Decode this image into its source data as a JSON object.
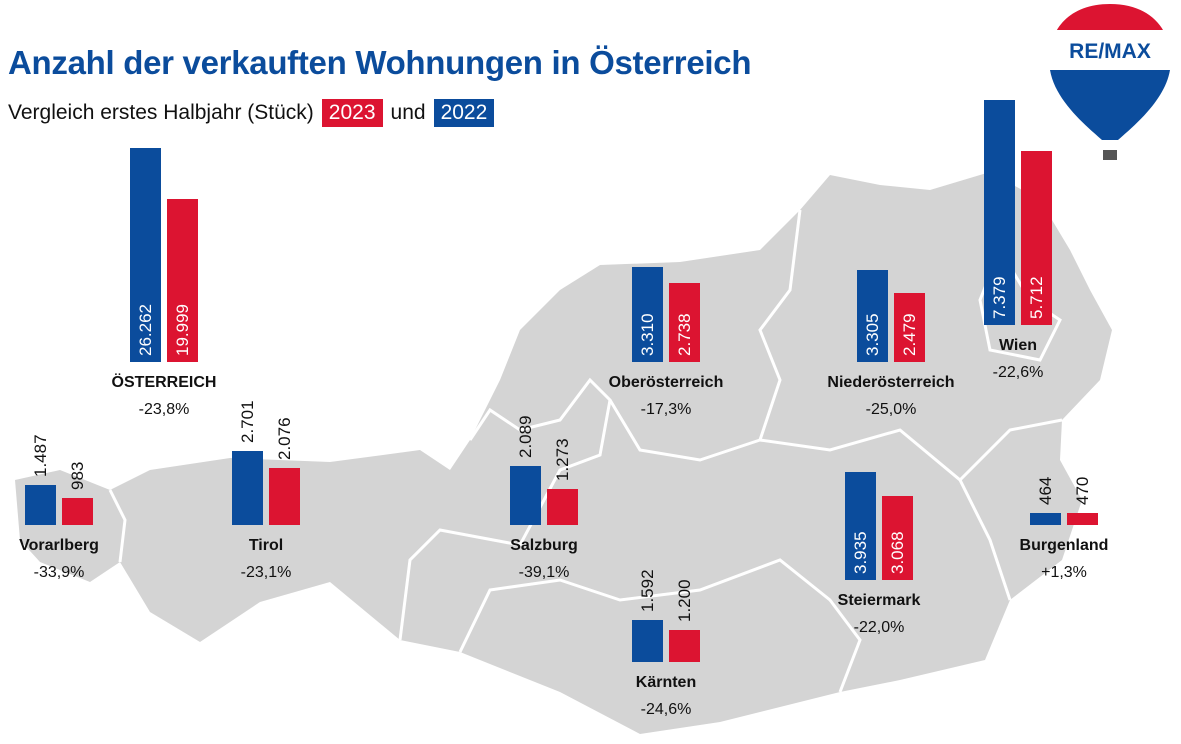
{
  "header": {
    "title": "Anzahl der verkauften Wohnungen in Österreich",
    "subtitle": "Vergleich erstes Halbjahr (Stück)",
    "year_2023": "2023",
    "connector": "und",
    "year_2022": "2022"
  },
  "logo": {
    "text": "RE/MAX"
  },
  "colors": {
    "y2022": "#0b4c9c",
    "y2023": "#dc1431",
    "map": "#d4d4d4"
  },
  "chart_data": {
    "type": "bar",
    "title": "Anzahl der verkauften Wohnungen in Österreich",
    "subtitle": "Vergleich erstes Halbjahr (Stück)",
    "legend": [
      "2023",
      "2022"
    ],
    "series_names": [
      "2022",
      "2023"
    ],
    "regions": [
      {
        "name": "ÖSTERREICH",
        "v2022": 26262,
        "v2023": 19999,
        "l2022": "26.262",
        "l2023": "19.999",
        "change": "-23,8%"
      },
      {
        "name": "Vorarlberg",
        "v2022": 1487,
        "v2023": 983,
        "l2022": "1.487",
        "l2023": "983",
        "change": "-33,9%"
      },
      {
        "name": "Tirol",
        "v2022": 2701,
        "v2023": 2076,
        "l2022": "2.701",
        "l2023": "2.076",
        "change": "-23,1%"
      },
      {
        "name": "Salzburg",
        "v2022": 2089,
        "v2023": 1273,
        "l2022": "2.089",
        "l2023": "1.273",
        "change": "-39,1%"
      },
      {
        "name": "Kärnten",
        "v2022": 1592,
        "v2023": 1200,
        "l2022": "1.592",
        "l2023": "1.200",
        "change": "-24,6%"
      },
      {
        "name": "Oberösterreich",
        "v2022": 3310,
        "v2023": 2738,
        "l2022": "3.310",
        "l2023": "2.738",
        "change": "-17,3%"
      },
      {
        "name": "Niederösterreich",
        "v2022": 3305,
        "v2023": 2479,
        "l2022": "3.305",
        "l2023": "2.479",
        "change": "-25,0%"
      },
      {
        "name": "Wien",
        "v2022": 7379,
        "v2023": 5712,
        "l2022": "7.379",
        "l2023": "5.712",
        "change": "-22,6%"
      },
      {
        "name": "Steiermark",
        "v2022": 3935,
        "v2023": 3068,
        "l2022": "3.935",
        "l2023": "3.068",
        "change": "-22,0%"
      },
      {
        "name": "Burgenland",
        "v2022": 464,
        "v2023": 470,
        "l2022": "464",
        "l2023": "470",
        "change": "+1,3%"
      }
    ]
  }
}
